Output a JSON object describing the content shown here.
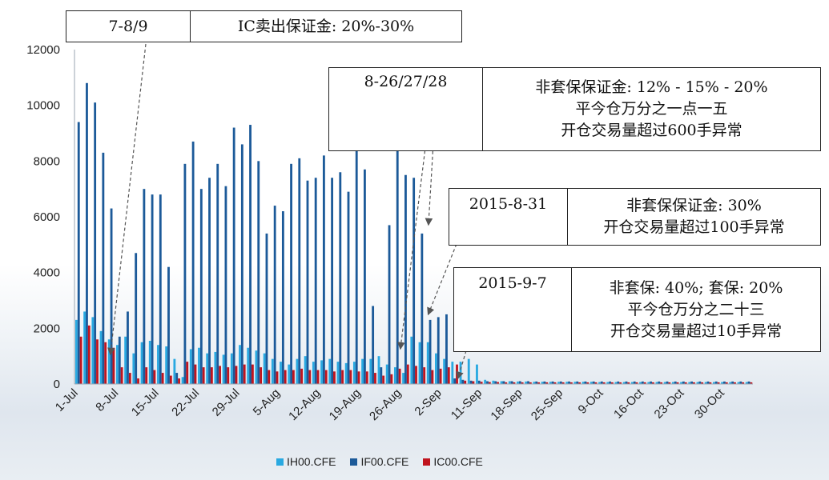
{
  "chart_data": {
    "type": "bar",
    "ylim": [
      0,
      12000
    ],
    "yticks": [
      0,
      2000,
      4000,
      6000,
      8000,
      10000,
      12000
    ],
    "xtick_labels": [
      "1-Jul",
      "8-Jul",
      "15-Jul",
      "22-Jul",
      "29-Jul",
      "5-Aug",
      "12-Aug",
      "19-Aug",
      "26-Aug",
      "2-Sep",
      "11-Sep",
      "18-Sep",
      "25-Sep",
      "9-Oct",
      "16-Oct",
      "23-Oct",
      "30-Oct"
    ],
    "colors": {
      "IH00.CFE": "#29a9e1",
      "IF00.CFE": "#1c5a99",
      "IC00.CFE": "#c0141e"
    },
    "series": [
      {
        "name": "IH00.CFE",
        "values": [
          2300,
          2600,
          2400,
          1900,
          1600,
          1400,
          1700,
          1100,
          1500,
          1550,
          1400,
          1350,
          900,
          250,
          1250,
          1300,
          1100,
          1150,
          1050,
          1100,
          1400,
          1300,
          1200,
          1100,
          900,
          800,
          700,
          900,
          1000,
          800,
          850,
          900,
          800,
          750,
          800,
          900,
          900,
          1000,
          700,
          600,
          400,
          1700,
          1500,
          1500,
          1100,
          900,
          800,
          800,
          900,
          700,
          150,
          120,
          100,
          100,
          90,
          90,
          80,
          80,
          80,
          80,
          80,
          80,
          80,
          80,
          70,
          70,
          70,
          70,
          70,
          70,
          70,
          70,
          70,
          70,
          70,
          70,
          70,
          70,
          70,
          70,
          70,
          70,
          70
        ]
      },
      {
        "name": "IF00.CFE",
        "values": [
          9400,
          10800,
          10100,
          8300,
          6300,
          1700,
          2600,
          4700,
          7000,
          6800,
          6800,
          4200,
          400,
          7900,
          8700,
          7000,
          7400,
          7900,
          7100,
          9200,
          8600,
          9300,
          8000,
          5400,
          6400,
          6200,
          7900,
          8100,
          7300,
          7400,
          8200,
          7400,
          7600,
          6900,
          8500,
          7700,
          2800,
          600,
          5700,
          10100,
          7500,
          7400,
          5400,
          2300,
          2400,
          2500,
          200,
          150,
          120,
          120,
          100,
          100,
          100,
          100,
          100,
          100,
          90,
          90,
          90,
          90,
          90,
          90,
          90,
          90,
          90,
          90,
          90,
          90,
          90,
          90,
          90,
          90,
          90,
          90,
          90,
          90,
          90,
          90,
          90,
          90,
          90,
          90,
          90
        ]
      },
      {
        "name": "IC00.CFE",
        "values": [
          1700,
          2100,
          1600,
          1500,
          1300,
          600,
          400,
          200,
          600,
          500,
          400,
          300,
          200,
          800,
          700,
          600,
          600,
          650,
          600,
          650,
          700,
          700,
          600,
          500,
          450,
          500,
          500,
          550,
          500,
          500,
          500,
          450,
          500,
          500,
          450,
          450,
          400,
          300,
          350,
          550,
          700,
          650,
          600,
          500,
          550,
          600,
          700,
          120,
          100,
          80,
          70,
          70,
          60,
          60,
          60,
          60,
          60,
          60,
          60,
          60,
          60,
          60,
          60,
          60,
          60,
          60,
          60,
          60,
          60,
          60,
          60,
          60,
          60,
          60,
          60,
          60,
          60,
          60,
          60,
          60,
          60,
          60,
          60
        ]
      }
    ]
  },
  "annotations": [
    {
      "date": "7-8/9",
      "lines": [
        "IC卖出保证金:  20%-30%"
      ]
    },
    {
      "date": "8-26/27/28",
      "lines": [
        "非套保保证金: 12% - 15% - 20%",
        "平今仓万分之一点一五",
        "开仓交易量超过600手异常"
      ]
    },
    {
      "date": "2015-8-31",
      "lines": [
        "非套保保证金: 30%",
        "开仓交易量超过100手异常"
      ]
    },
    {
      "date": "2015-9-7",
      "lines": [
        "非套保: 40%; 套保: 20%",
        "平今仓万分之二十三",
        "开仓交易量超过10手异常"
      ]
    }
  ],
  "legend": [
    "IH00.CFE",
    "IF00.CFE",
    "IC00.CFE"
  ]
}
